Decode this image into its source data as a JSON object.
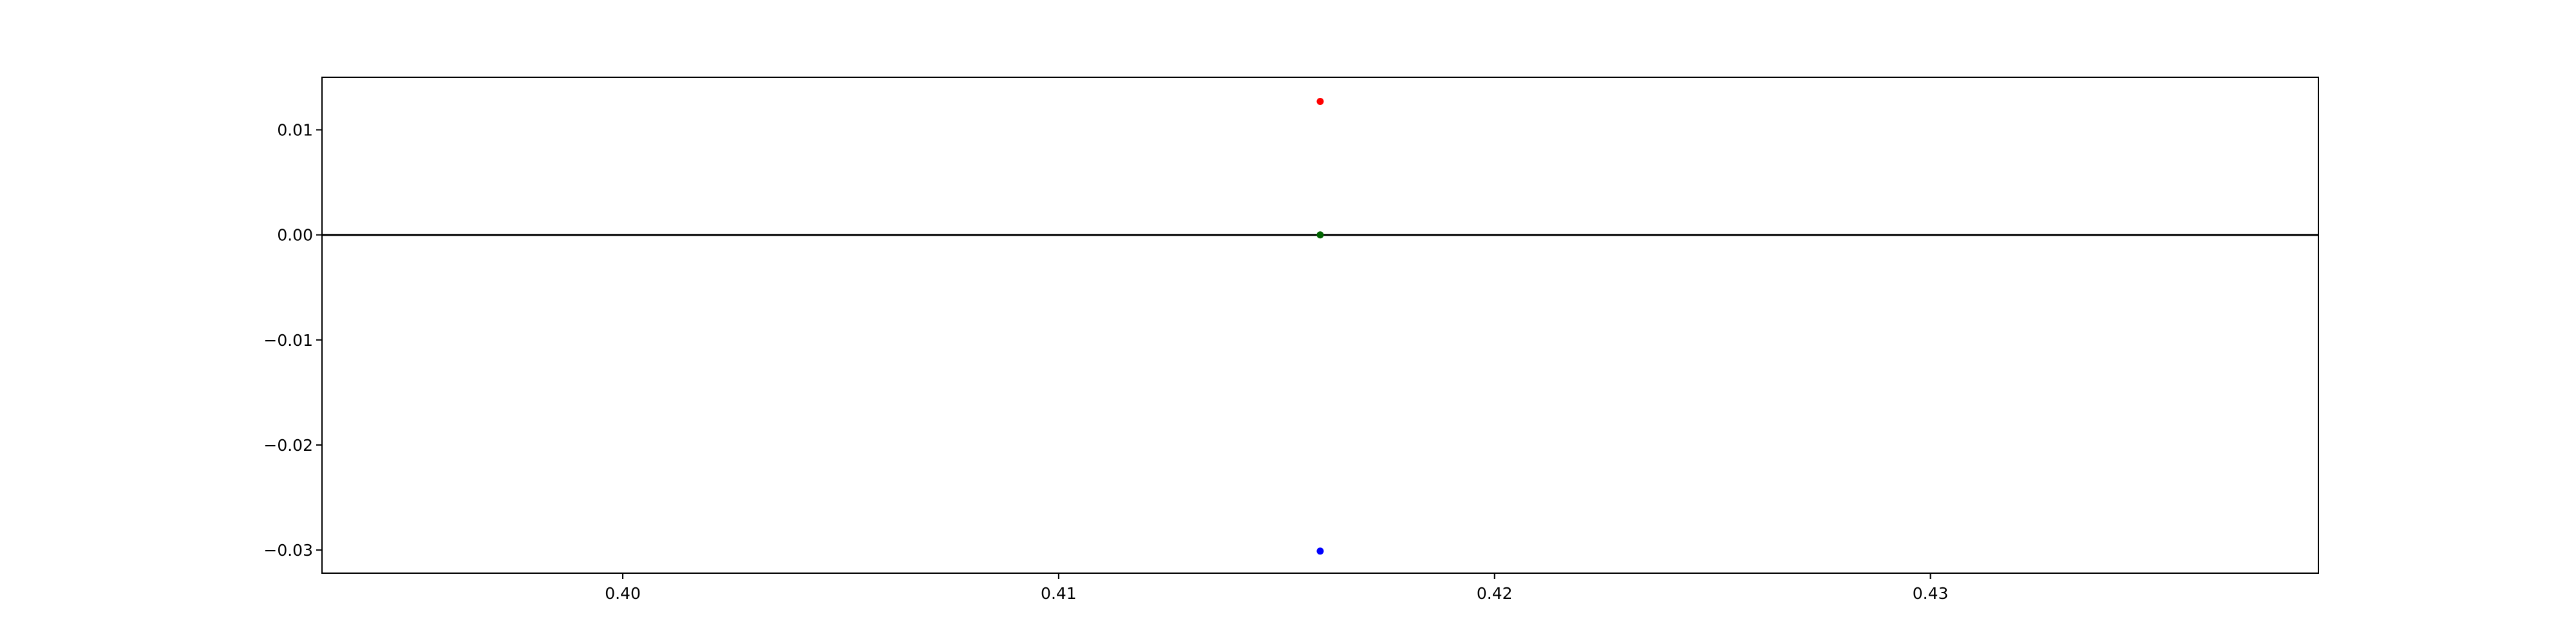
{
  "chart_data": {
    "type": "scatter",
    "title": "",
    "xlabel": "",
    "ylabel": "",
    "xlim": [
      0.3931,
      0.4389
    ],
    "ylim": [
      -0.0322,
      0.015
    ],
    "x_ticks": [
      {
        "value": 0.4,
        "label": "0.40"
      },
      {
        "value": 0.41,
        "label": "0.41"
      },
      {
        "value": 0.42,
        "label": "0.42"
      },
      {
        "value": 0.43,
        "label": "0.43"
      }
    ],
    "y_ticks": [
      {
        "value": 0.01,
        "label": "0.01"
      },
      {
        "value": 0.0,
        "label": "0.00"
      },
      {
        "value": -0.01,
        "label": "−0.01"
      },
      {
        "value": -0.02,
        "label": "−0.02"
      },
      {
        "value": -0.03,
        "label": "−0.03"
      }
    ],
    "reference_line": {
      "y": 0.0,
      "color": "#000000"
    },
    "points": [
      {
        "x": 0.416,
        "y": 0.0127,
        "color": "#ff0000"
      },
      {
        "x": 0.416,
        "y": 0.0,
        "color": "#006400"
      },
      {
        "x": 0.416,
        "y": -0.0301,
        "color": "#0000ff"
      }
    ],
    "grid": false,
    "legend": "none"
  }
}
